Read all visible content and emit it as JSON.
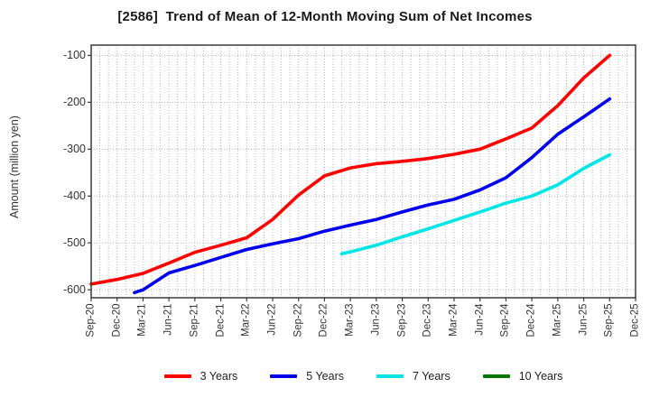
{
  "title": "[2586]  Trend of Mean of 12-Month Moving Sum of Net Incomes",
  "y_axis": {
    "label": "Amount (million yen)",
    "ticks": [
      -100,
      -200,
      -300,
      -400,
      -500,
      -600
    ]
  },
  "x_axis": {
    "tick_labels": [
      "Sep-20",
      "Dec-20",
      "Mar-21",
      "Jun-21",
      "Sep-21",
      "Dec-21",
      "Mar-22",
      "Jun-22",
      "Sep-22",
      "Dec-22",
      "Mar-23",
      "Jun-23",
      "Sep-23",
      "Dec-23",
      "Mar-24",
      "Jun-24",
      "Sep-24",
      "Dec-24",
      "Mar-25",
      "Jun-25",
      "Sep-25",
      "Dec-25"
    ]
  },
  "legend": [
    {
      "label": "3 Years",
      "color": "#ff0000"
    },
    {
      "label": "5 Years",
      "color": "#0000ee"
    },
    {
      "label": "7 Years",
      "color": "#00e6e6"
    },
    {
      "label": "10 Years",
      "color": "#007700"
    }
  ],
  "colors": {
    "grid": "#b5b5b5",
    "axis_border": "#3a3a3a",
    "tick_text": "#333333"
  },
  "chart_data": {
    "type": "line",
    "title": "[2586]  Trend of Mean of 12-Month Moving Sum of Net Incomes",
    "xlabel": "",
    "ylabel": "Amount (million yen)",
    "ylim": [
      -617,
      -78
    ],
    "x_range": [
      "Sep-20",
      "Dec-25"
    ],
    "grid": true,
    "legend_position": "bottom",
    "series": [
      {
        "name": "3 Years",
        "color": "#ff0000",
        "points": [
          [
            "Sep-20",
            -588
          ],
          [
            "Dec-20",
            -578
          ],
          [
            "Mar-21",
            -565
          ],
          [
            "Jun-21",
            -543
          ],
          [
            "Sep-21",
            -520
          ],
          [
            "Dec-21",
            -505
          ],
          [
            "Mar-22",
            -489
          ],
          [
            "Jun-22",
            -450
          ],
          [
            "Sep-22",
            -398
          ],
          [
            "Dec-22",
            -357
          ],
          [
            "Mar-23",
            -340
          ],
          [
            "Jun-23",
            -331
          ],
          [
            "Sep-23",
            -326
          ],
          [
            "Dec-23",
            -320
          ],
          [
            "Mar-24",
            -311
          ],
          [
            "Jun-24",
            -300
          ],
          [
            "Sep-24",
            -278
          ],
          [
            "Dec-24",
            -255
          ],
          [
            "Mar-25",
            -207
          ],
          [
            "Jun-25",
            -148
          ],
          [
            "Sep-25",
            -100
          ]
        ]
      },
      {
        "name": "5 Years",
        "color": "#0000ee",
        "points": [
          [
            "Feb-21",
            -606
          ],
          [
            "Mar-21",
            -600
          ],
          [
            "Jun-21",
            -564
          ],
          [
            "Sep-21",
            -548
          ],
          [
            "Dec-21",
            -531
          ],
          [
            "Mar-22",
            -514
          ],
          [
            "Jun-22",
            -502
          ],
          [
            "Sep-22",
            -491
          ],
          [
            "Dec-22",
            -475
          ],
          [
            "Mar-23",
            -462
          ],
          [
            "Jun-23",
            -450
          ],
          [
            "Sep-23",
            -434
          ],
          [
            "Dec-23",
            -419
          ],
          [
            "Mar-24",
            -407
          ],
          [
            "Jun-24",
            -387
          ],
          [
            "Sep-24",
            -361
          ],
          [
            "Dec-24",
            -318
          ],
          [
            "Mar-25",
            -268
          ],
          [
            "Jun-25",
            -231
          ],
          [
            "Sep-25",
            -193
          ]
        ]
      },
      {
        "name": "7 Years",
        "color": "#00e6e6",
        "points": [
          [
            "Feb-23",
            -523
          ],
          [
            "Mar-23",
            -519
          ],
          [
            "Jun-23",
            -505
          ],
          [
            "Sep-23",
            -487
          ],
          [
            "Dec-23",
            -470
          ],
          [
            "Mar-24",
            -452
          ],
          [
            "Jun-24",
            -434
          ],
          [
            "Sep-24",
            -415
          ],
          [
            "Dec-24",
            -400
          ],
          [
            "Mar-25",
            -376
          ],
          [
            "Jun-25",
            -341
          ],
          [
            "Sep-25",
            -312
          ]
        ]
      },
      {
        "name": "10 Years",
        "color": "#007700",
        "points": []
      }
    ]
  }
}
